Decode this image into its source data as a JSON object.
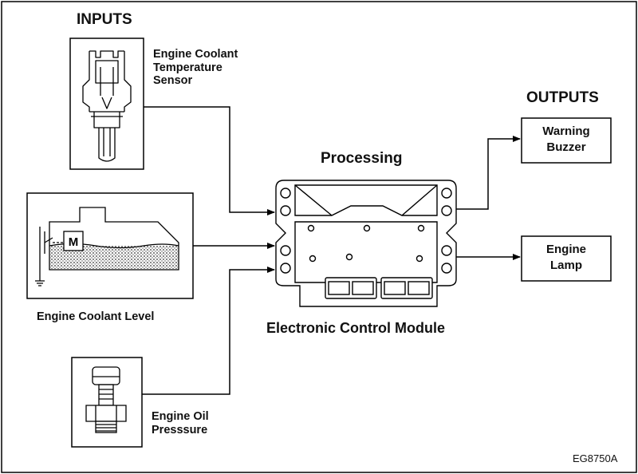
{
  "headings": {
    "inputs": "INPUTS",
    "outputs": "OUTPUTS",
    "processing": "Processing"
  },
  "inputs": {
    "coolant_temp_sensor": [
      "Engine Coolant",
      "Temperature",
      "Sensor"
    ],
    "coolant_level": "Engine Coolant Level",
    "coolant_level_motor_symbol": "M",
    "oil_pressure": [
      "Engine Oil",
      "Presssure"
    ]
  },
  "module": {
    "name": "Electronic Control Module"
  },
  "outputs": {
    "warning_buzzer": [
      "Warning",
      "Buzzer"
    ],
    "engine_lamp": [
      "Engine",
      "Lamp"
    ]
  },
  "figure_ref": "EG8750A"
}
